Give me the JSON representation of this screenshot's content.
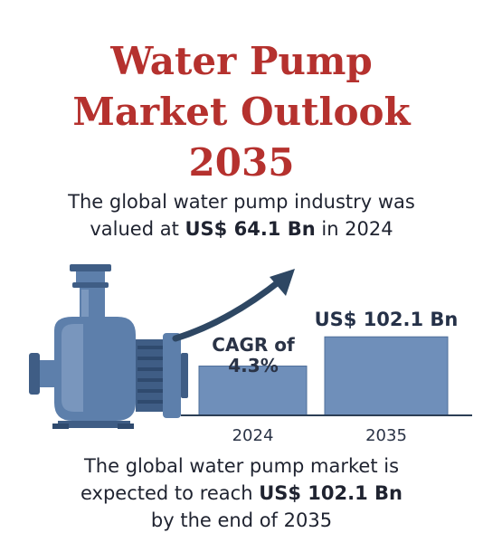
{
  "title": {
    "line1": "Water Pump",
    "line2": "Market Outlook",
    "line3": "2035"
  },
  "intro": {
    "line1": "The global water pump industry was",
    "line2_prefix": "valued at ",
    "line2_value": "US$ 64.1 Bn",
    "line2_suffix": " in 2024"
  },
  "chart_data": {
    "type": "bar",
    "categories": [
      "2024",
      "2035"
    ],
    "values": [
      64.1,
      102.1
    ],
    "value_labels": [
      "",
      "US$ 102.1 Bn"
    ],
    "annotation": "CAGR of 4.3%",
    "annotation_lines": [
      "CAGR of",
      "4.3%"
    ],
    "bar_color": "#6f8fba",
    "bar_border_color": "#4f6f9a",
    "axis_color": "#2c3e55",
    "arrow_color": "#2e4763"
  },
  "footer": {
    "line1": "The global water pump market is",
    "line2_prefix": "expected to reach ",
    "line2_value": "US$ 102.1 Bn",
    "line3": "by the end of 2035"
  },
  "illustration": {
    "icon": "water-pump-icon",
    "colors": {
      "body": "#5d7fab",
      "dark": "#3f5d85",
      "light": "#8fa9cc"
    }
  }
}
